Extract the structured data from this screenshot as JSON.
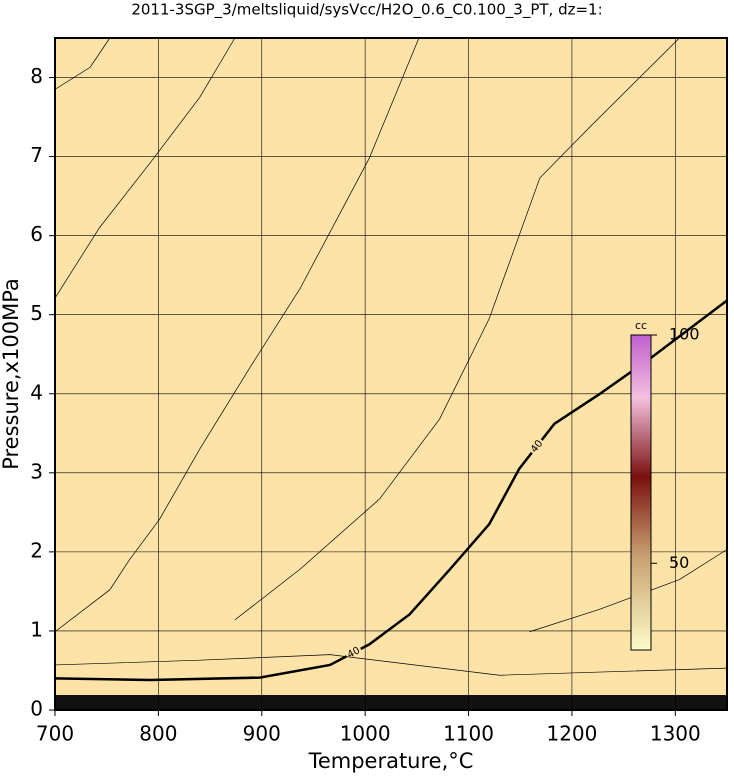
{
  "chart_data": {
    "type": "contour",
    "title": "2011-3SGP_3/meltsliquid/sysVcc/H2O_0.6_C0.100_3_PT, dz=1:",
    "xlabel": "Temperature,°C",
    "ylabel": "Pressure,x100MPa",
    "xlim": [
      700,
      1350
    ],
    "xticks": [
      700,
      800,
      900,
      1000,
      1100,
      1200,
      1300
    ],
    "ylim": [
      0,
      8.5
    ],
    "yticks": [
      0,
      1,
      2,
      3,
      4,
      5,
      6,
      7,
      8
    ],
    "grid": true,
    "contours": [
      {
        "level": 40,
        "bold": true,
        "x": [
          700,
          792,
          898,
          966,
          1004,
          1043,
          1082,
          1120,
          1149,
          1183,
          1226,
          1275,
          1350
        ],
        "y": [
          0.4,
          0.38,
          0.41,
          0.57,
          0.83,
          1.21,
          1.78,
          2.35,
          3.05,
          3.62,
          3.99,
          4.44,
          5.18
        ]
      },
      {
        "x": [
          700,
          753,
          772,
          801,
          840,
          888,
          937,
          1004,
          1052
        ],
        "y": [
          0.99,
          1.52,
          1.9,
          2.41,
          3.3,
          4.32,
          5.33,
          6.98,
          8.5
        ]
      },
      {
        "x": [
          700,
          743,
          792,
          840,
          874
        ],
        "y": [
          5.21,
          6.1,
          6.92,
          7.75,
          8.5
        ]
      },
      {
        "x": [
          700,
          734,
          753
        ],
        "y": [
          7.85,
          8.13,
          8.5
        ]
      },
      {
        "x": [
          874,
          937,
          1014,
          1072,
          1120,
          1169,
          1217,
          1304
        ],
        "y": [
          1.14,
          1.78,
          2.67,
          3.68,
          4.95,
          6.73,
          7.37,
          8.5
        ]
      },
      {
        "x": [
          1159,
          1226,
          1304,
          1350
        ],
        "y": [
          0.99,
          1.27,
          1.65,
          2.03
        ]
      },
      {
        "x": [
          700,
          840,
          966,
          1130,
          1350
        ],
        "y": [
          0.57,
          0.63,
          0.7,
          0.44,
          0.53
        ]
      }
    ],
    "colorbar": {
      "label": "cc",
      "lim": [
        31,
        100
      ],
      "ticks": [
        50,
        100
      ]
    }
  }
}
